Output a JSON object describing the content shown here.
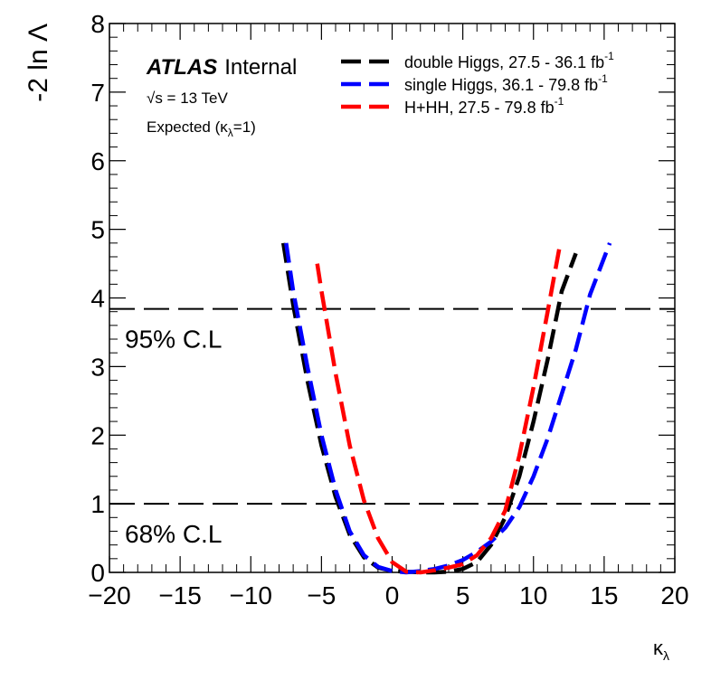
{
  "chart_data": {
    "type": "line",
    "ylabel": "-2 ln Λ",
    "xlabel_main": "κ",
    "xlabel_sub": "λ",
    "xlim": [
      -20,
      20
    ],
    "ylim": [
      0,
      8
    ],
    "x_ticks": [
      "−20",
      "−15",
      "−10",
      "−5",
      "0",
      "5",
      "10",
      "15",
      "20"
    ],
    "x_tick_values": [
      -20,
      -15,
      -10,
      -5,
      0,
      5,
      10,
      15,
      20
    ],
    "y_ticks": [
      "0",
      "1",
      "2",
      "3",
      "4",
      "5",
      "6",
      "7",
      "8"
    ],
    "y_tick_values": [
      0,
      1,
      2,
      3,
      4,
      5,
      6,
      7,
      8
    ],
    "grid": false,
    "legend_position": "top-right",
    "atlas": {
      "brand": "ATLAS",
      "status": "Internal"
    },
    "annotations": {
      "energy": "√s = 13 TeV",
      "expected_prefix": "Expected (",
      "expected_kappa": "κ",
      "expected_sub": "λ",
      "expected_suffix": "=1)"
    },
    "cl_lines": [
      {
        "label": "95% C.L",
        "y": 3.84
      },
      {
        "label": "68% C.L",
        "y": 1.0
      }
    ],
    "series": [
      {
        "name": "double Higgs, 27.5 - 36.1 fb",
        "name_sup": "-1",
        "color": "#000000",
        "points": [
          [
            -7.7,
            4.8
          ],
          [
            -7,
            3.9
          ],
          [
            -6,
            2.8
          ],
          [
            -5,
            1.85
          ],
          [
            -4,
            1.1
          ],
          [
            -3,
            0.55
          ],
          [
            -2,
            0.22
          ],
          [
            -1,
            0.07
          ],
          [
            0,
            0.02
          ],
          [
            1,
            0.01
          ],
          [
            2,
            0.0
          ],
          [
            3,
            0.0
          ],
          [
            4,
            0.01
          ],
          [
            5,
            0.05
          ],
          [
            6,
            0.15
          ],
          [
            7,
            0.4
          ],
          [
            8,
            0.8
          ],
          [
            9,
            1.4
          ],
          [
            10,
            2.2
          ],
          [
            11,
            3.1
          ],
          [
            12,
            4.1
          ],
          [
            13,
            4.65
          ]
        ]
      },
      {
        "name": "single Higgs, 36.1 - 79.8 fb",
        "name_sup": "-1",
        "color": "#0000ff",
        "points": [
          [
            -7.5,
            4.8
          ],
          [
            -7,
            4.1
          ],
          [
            -6,
            3.0
          ],
          [
            -5,
            2.0
          ],
          [
            -4,
            1.2
          ],
          [
            -3,
            0.6
          ],
          [
            -2,
            0.25
          ],
          [
            -1,
            0.08
          ],
          [
            0,
            0.02
          ],
          [
            1,
            0.0
          ],
          [
            2,
            0.02
          ],
          [
            3,
            0.05
          ],
          [
            4,
            0.1
          ],
          [
            5,
            0.18
          ],
          [
            6,
            0.3
          ],
          [
            7,
            0.45
          ],
          [
            8,
            0.65
          ],
          [
            9,
            0.95
          ],
          [
            10,
            1.4
          ],
          [
            11,
            1.95
          ],
          [
            12,
            2.6
          ],
          [
            13,
            3.25
          ],
          [
            14,
            4.05
          ],
          [
            15.4,
            4.8
          ]
        ]
      },
      {
        "name": "H+HH, 27.5 - 79.8 fb",
        "name_sup": "-1",
        "color": "#ff0000",
        "points": [
          [
            -5.3,
            4.5
          ],
          [
            -5,
            4.1
          ],
          [
            -4,
            2.9
          ],
          [
            -3,
            1.85
          ],
          [
            -2,
            1.05
          ],
          [
            -1,
            0.5
          ],
          [
            0,
            0.15
          ],
          [
            1,
            0.01
          ],
          [
            2,
            0.0
          ],
          [
            3,
            0.03
          ],
          [
            4,
            0.07
          ],
          [
            5,
            0.12
          ],
          [
            6,
            0.25
          ],
          [
            7,
            0.5
          ],
          [
            8,
            0.9
          ],
          [
            9,
            1.7
          ],
          [
            10,
            2.7
          ],
          [
            11,
            3.8
          ],
          [
            11.9,
            4.8
          ]
        ]
      }
    ]
  }
}
